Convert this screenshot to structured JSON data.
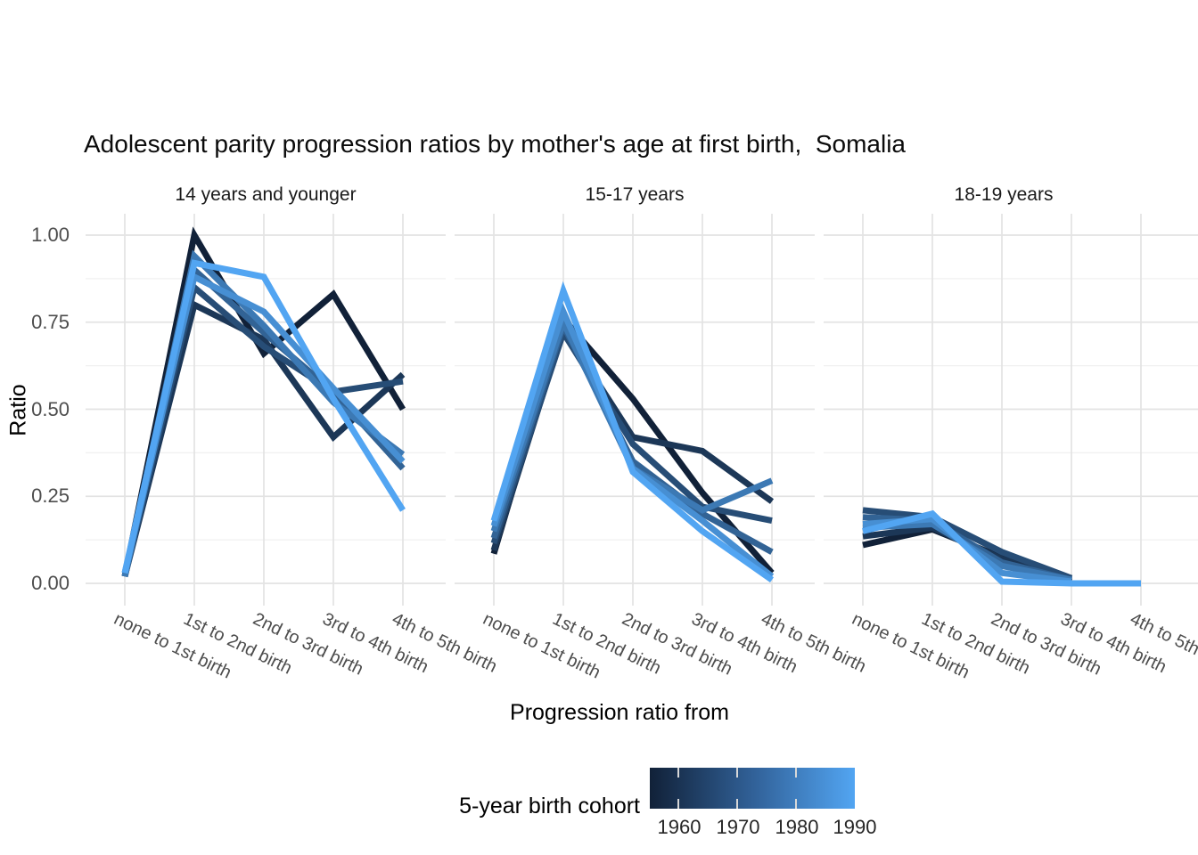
{
  "title": "Adolescent parity progression ratios by mother's age at first birth,  Somalia",
  "y_axis": {
    "title": "Ratio",
    "ticks": [
      "1.00",
      "0.75",
      "0.50",
      "0.25",
      "0.00"
    ]
  },
  "x_axis": {
    "title": "Progression ratio from"
  },
  "legend": {
    "title": "5-year birth cohort",
    "tick_labels": [
      "1960",
      "1970",
      "1980",
      "1990"
    ],
    "gradient_start": "#112138",
    "gradient_end": "#52A5F2"
  },
  "chart_data": {
    "type": "line",
    "title": "Adolescent parity progression ratios by mother's age at first birth,  Somalia",
    "xlabel": "Progression ratio from",
    "ylabel": "Ratio",
    "ylim": [
      0,
      1
    ],
    "yticks": [
      0,
      0.25,
      0.5,
      0.75,
      1.0
    ],
    "grid": "major+minor horizontal, major vertical",
    "legend_position": "bottom",
    "color_scale": {
      "label": "5-year birth cohort",
      "min": 1960,
      "max": 1990,
      "low": "#112138",
      "high": "#52A5F2"
    },
    "categories": [
      "none to 1st birth",
      "1st to 2nd birth",
      "2nd to 3rd birth",
      "3rd to 4th birth",
      "4th to 5th birth"
    ],
    "facets": [
      {
        "label": "14 years and younger",
        "series": [
          {
            "cohort": 1960,
            "color": "#112138",
            "values": [
              0.02,
              1.0,
              0.66,
              0.83,
              0.5
            ]
          },
          {
            "cohort": 1965,
            "color": "#1C3757",
            "values": [
              0.02,
              0.8,
              0.7,
              0.42,
              0.6
            ]
          },
          {
            "cohort": 1970,
            "color": "#274D76",
            "values": [
              0.02,
              0.85,
              0.68,
              0.55,
              0.58
            ]
          },
          {
            "cohort": 1975,
            "color": "#326395",
            "values": [
              0.02,
              0.9,
              0.72,
              0.55,
              0.33
            ]
          },
          {
            "cohort": 1980,
            "color": "#3C79B4",
            "values": [
              0.02,
              0.94,
              0.74,
              0.52,
              0.37
            ]
          },
          {
            "cohort": 1985,
            "color": "#478FD3",
            "values": [
              0.03,
              0.88,
              0.78,
              0.56,
              0.35
            ]
          },
          {
            "cohort": 1990,
            "color": "#52A5F2",
            "values": [
              0.03,
              0.92,
              0.88,
              0.53,
              0.21
            ]
          }
        ]
      },
      {
        "label": "15-17 years",
        "series": [
          {
            "cohort": 1960,
            "color": "#112138",
            "values": [
              0.085,
              0.76,
              0.53,
              0.26,
              0.03
            ]
          },
          {
            "cohort": 1965,
            "color": "#1C3757",
            "values": [
              0.095,
              0.73,
              0.42,
              0.38,
              0.235
            ]
          },
          {
            "cohort": 1970,
            "color": "#274D76",
            "values": [
              0.115,
              0.72,
              0.4,
              0.22,
              0.18
            ]
          },
          {
            "cohort": 1975,
            "color": "#326395",
            "values": [
              0.13,
              0.74,
              0.35,
              0.2,
              0.09
            ]
          },
          {
            "cohort": 1980,
            "color": "#3C79B4",
            "values": [
              0.15,
              0.75,
              0.33,
              0.21,
              0.295
            ]
          },
          {
            "cohort": 1985,
            "color": "#478FD3",
            "values": [
              0.165,
              0.78,
              0.33,
              0.18,
              0.02
            ]
          },
          {
            "cohort": 1990,
            "color": "#52A5F2",
            "values": [
              0.18,
              0.84,
              0.32,
              0.15,
              0.01
            ]
          }
        ]
      },
      {
        "label": "18-19 years",
        "series": [
          {
            "cohort": 1960,
            "color": "#112138",
            "values": [
              0.11,
              0.155,
              0.075,
              0.005,
              null
            ]
          },
          {
            "cohort": 1965,
            "color": "#1C3757",
            "values": [
              0.135,
              0.16,
              0.07,
              0.01,
              null
            ]
          },
          {
            "cohort": 1970,
            "color": "#274D76",
            "values": [
              0.21,
              0.19,
              0.09,
              0.015,
              null
            ]
          },
          {
            "cohort": 1975,
            "color": "#326395",
            "values": [
              0.19,
              0.18,
              0.06,
              0.01,
              null
            ]
          },
          {
            "cohort": 1980,
            "color": "#3C79B4",
            "values": [
              0.16,
              0.17,
              0.05,
              0.01,
              null
            ]
          },
          {
            "cohort": 1985,
            "color": "#478FD3",
            "values": [
              0.17,
              0.185,
              0.03,
              0.005,
              null
            ]
          },
          {
            "cohort": 1990,
            "color": "#52A5F2",
            "values": [
              0.15,
              0.2,
              0.005,
              0.0,
              0.0
            ]
          }
        ]
      }
    ]
  }
}
